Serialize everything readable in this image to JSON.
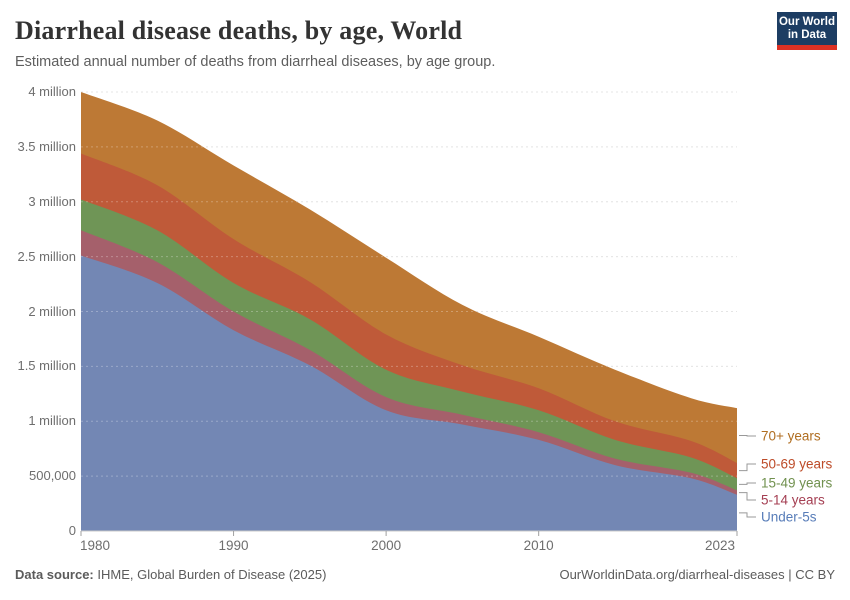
{
  "header": {
    "title": "Diarrheal disease deaths, by age, World",
    "subtitle": "Estimated annual number of deaths from diarrheal diseases, by age group.",
    "logo": {
      "line1": "Our World",
      "line2": "in Data",
      "bg_color": "#1d3d63",
      "accent_color": "#dd3124"
    }
  },
  "chart": {
    "y_axis": {
      "ticks": [
        {
          "value": 0,
          "label": "0"
        },
        {
          "value": 500000,
          "label": "500,000"
        },
        {
          "value": 1000000,
          "label": "1 million"
        },
        {
          "value": 1500000,
          "label": "1.5 million"
        },
        {
          "value": 2000000,
          "label": "2 million"
        },
        {
          "value": 2500000,
          "label": "2.5 million"
        },
        {
          "value": 3000000,
          "label": "3 million"
        },
        {
          "value": 3500000,
          "label": "3.5 million"
        },
        {
          "value": 4000000,
          "label": "4 million"
        }
      ]
    },
    "x_axis": {
      "ticks": [
        {
          "value": 1980,
          "label": "1980"
        },
        {
          "value": 1990,
          "label": "1990"
        },
        {
          "value": 2000,
          "label": "2000"
        },
        {
          "value": 2010,
          "label": "2010"
        },
        {
          "value": 2023,
          "label": "2023"
        }
      ]
    },
    "legend": [
      {
        "label": "70+ years",
        "series": "70+ years",
        "text_color": "#b06e21"
      },
      {
        "label": "50-69 years",
        "series": "50-69 years",
        "text_color": "#bd4b28"
      },
      {
        "label": "15-49 years",
        "series": "15-49 years",
        "text_color": "#71914f"
      },
      {
        "label": "5-14 years",
        "series": "5-14 years",
        "text_color": "#a43e52"
      },
      {
        "label": "Under-5s",
        "series": "Under-5s",
        "text_color": "#577cb8"
      }
    ]
  },
  "chart_data": {
    "type": "area",
    "stacked": true,
    "title": "Diarrheal disease deaths, by age, World",
    "x": [
      1980,
      1985,
      1990,
      1995,
      2000,
      2005,
      2010,
      2015,
      2020,
      2023
    ],
    "unit": "deaths per year (millions)",
    "series": [
      {
        "name": "Under-5s",
        "color": "#7387b4",
        "values_millions": [
          2.51,
          2.26,
          1.83,
          1.51,
          1.1,
          0.97,
          0.83,
          0.6,
          0.48,
          0.33
        ]
      },
      {
        "name": "5-14 years",
        "color": "#a5606b",
        "values_millions": [
          0.23,
          0.19,
          0.17,
          0.14,
          0.12,
          0.09,
          0.07,
          0.06,
          0.05,
          0.04
        ]
      },
      {
        "name": "15-49 years",
        "color": "#6f9556",
        "values_millions": [
          0.28,
          0.29,
          0.26,
          0.28,
          0.25,
          0.21,
          0.2,
          0.17,
          0.14,
          0.11
        ]
      },
      {
        "name": "50-69 years",
        "color": "#bf5a39",
        "values_millions": [
          0.42,
          0.41,
          0.4,
          0.34,
          0.32,
          0.24,
          0.2,
          0.17,
          0.15,
          0.14
        ]
      },
      {
        "name": "70+ years",
        "color": "#bd7935",
        "values_millions": [
          0.56,
          0.59,
          0.67,
          0.66,
          0.7,
          0.55,
          0.47,
          0.47,
          0.39,
          0.5
        ]
      }
    ],
    "totals_millions": [
      4.0,
      3.74,
      3.33,
      2.93,
      2.49,
      2.06,
      1.77,
      1.47,
      1.21,
      1.12
    ],
    "xlim": [
      1980,
      2023
    ],
    "ylim": [
      0,
      4000000
    ],
    "grid": "dashed horizontal, 500k intervals",
    "legend_position": "right, colored labels with connector lines"
  },
  "footer": {
    "source_label": "Data source:",
    "source_value": " IHME, Global Burden of Disease (2025)",
    "link": "OurWorldinData.org/diarrheal-diseases",
    "separator": " | ",
    "license": "CC BY"
  }
}
